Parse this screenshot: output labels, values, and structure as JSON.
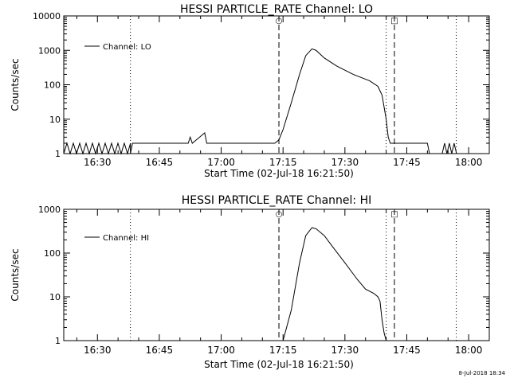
{
  "footer_timestamp": "8-Jul-2018 18:34",
  "chart_data": [
    {
      "type": "line",
      "title": "HESSI PARTICLE_RATE Channel: LO",
      "xlabel": "Start Time (02-Jul-18 16:21:50)",
      "ylabel": "Counts/sec",
      "y_scale": "log",
      "xlim": [
        "16:21:50",
        "18:05:00"
      ],
      "ylim": [
        1,
        10000
      ],
      "x_ticks": [
        "16:30",
        "16:45",
        "17:00",
        "17:15",
        "17:30",
        "17:45",
        "18:00"
      ],
      "y_ticks": [
        "1",
        "10",
        "100",
        "1000",
        "10000"
      ],
      "grid": false,
      "legend_position": "top-left",
      "series": [
        {
          "name": "Channel: LO",
          "x": [
            "16:21:50",
            "16:38:00",
            "16:38:30",
            "16:52:00",
            "16:52:30",
            "16:53:00",
            "16:56:00",
            "16:56:30",
            "17:13:00",
            "17:14:00",
            "17:15:00",
            "17:17:00",
            "17:19:00",
            "17:20:30",
            "17:22:00",
            "17:23:00",
            "17:25:00",
            "17:28:00",
            "17:32:00",
            "17:36:00",
            "17:38:00",
            "17:39:00",
            "17:40:00",
            "17:40:30",
            "17:41:00",
            "17:50:00",
            "17:50:30",
            "17:53:00"
          ],
          "y": [
            1,
            1,
            2,
            2,
            3,
            2,
            4,
            2,
            2,
            2.5,
            5,
            30,
            200,
            700,
            1100,
            1000,
            600,
            350,
            200,
            130,
            90,
            50,
            10,
            3,
            2,
            2,
            1,
            1
          ]
        }
      ],
      "markers": {
        "dashed_lines": [
          "17:14:00",
          "17:42:00"
        ],
        "dotted_lines": [
          "16:38:00",
          "17:40:00",
          "17:57:00"
        ],
        "symbols": [
          {
            "x": "17:14:00",
            "label": "○"
          },
          {
            "x": "17:42:00",
            "label": "□"
          }
        ]
      }
    },
    {
      "type": "line",
      "title": "HESSI PARTICLE_RATE Channel: HI",
      "xlabel": "Start Time (02-Jul-18 16:21:50)",
      "ylabel": "Counts/sec",
      "y_scale": "log",
      "xlim": [
        "16:21:50",
        "18:05:00"
      ],
      "ylim": [
        1,
        1000
      ],
      "x_ticks": [
        "16:30",
        "16:45",
        "17:00",
        "17:15",
        "17:30",
        "17:45",
        "18:00"
      ],
      "y_ticks": [
        "1",
        "10",
        "100",
        "1000"
      ],
      "grid": false,
      "legend_position": "top-left",
      "series": [
        {
          "name": "Channel: HI",
          "x": [
            "17:15:00",
            "17:17:00",
            "17:19:00",
            "17:20:30",
            "17:22:00",
            "17:23:00",
            "17:25:00",
            "17:27:00",
            "17:30:00",
            "17:33:00",
            "17:35:00",
            "17:37:00",
            "17:38:00",
            "17:38:30",
            "17:39:00",
            "17:39:30",
            "17:40:00"
          ],
          "y": [
            1,
            5,
            60,
            250,
            380,
            360,
            250,
            140,
            60,
            25,
            15,
            12,
            10,
            8,
            3,
            1.5,
            1
          ]
        }
      ],
      "markers": {
        "dashed_lines": [
          "17:14:00",
          "17:42:00"
        ],
        "dotted_lines": [
          "16:38:00",
          "17:40:00",
          "17:57:00"
        ],
        "symbols": [
          {
            "x": "17:14:00",
            "label": "○"
          },
          {
            "x": "17:42:00",
            "label": "□"
          }
        ]
      }
    }
  ]
}
